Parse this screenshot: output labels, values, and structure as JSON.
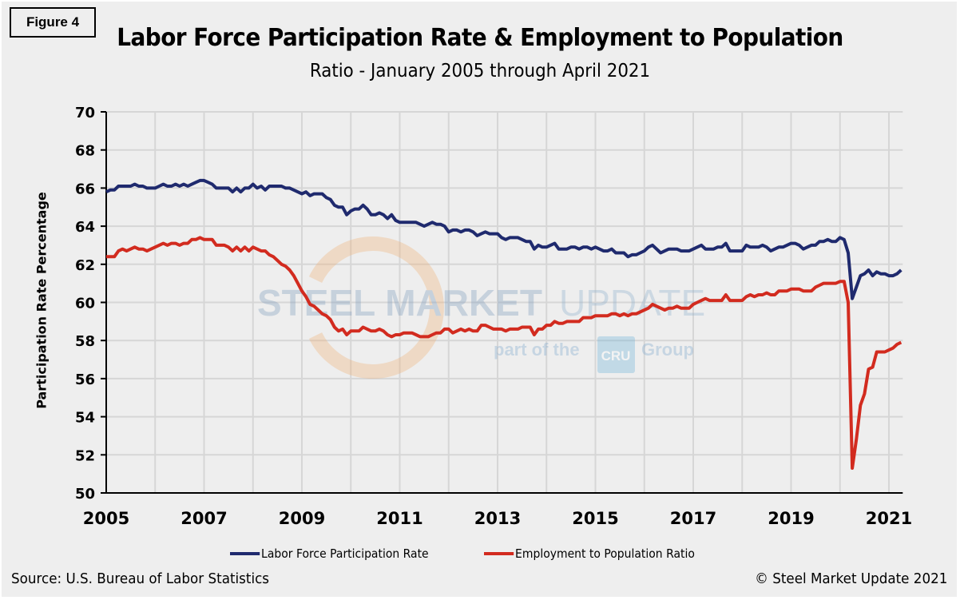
{
  "figure_label": "Figure 4",
  "source": "Source: U.S. Bureau  of Labor Statistics",
  "copyright": "© Steel Market Update 2021",
  "watermark": {
    "main_bold": "STEEL MARKET",
    "main_light": "UPDATE",
    "sub": "part of the",
    "cru": "CRU",
    "group": "Group"
  },
  "chart_data": {
    "type": "line",
    "title": "Labor Force Participation Rate & Employment to Population",
    "subtitle": "Ratio - January 2005 through April 2021",
    "xlabel": "",
    "ylabel": "Participation Rate Percentage",
    "xlim": [
      "2005-01",
      "2021-04"
    ],
    "ylim": [
      50,
      70
    ],
    "x_start": "2005-01",
    "x_frequency": "monthly",
    "x_tick_labels": [
      "2005",
      "2007",
      "2009",
      "2011",
      "2013",
      "2015",
      "2017",
      "2019",
      "2021"
    ],
    "y_tick_labels": [
      "50",
      "52",
      "54",
      "56",
      "58",
      "60",
      "62",
      "64",
      "66",
      "68",
      "70"
    ],
    "grid": true,
    "legend_position": "bottom",
    "series": [
      {
        "name": "Labor Force Participation Rate",
        "color": "#1f2a6e",
        "values": [
          65.8,
          65.9,
          65.9,
          66.1,
          66.1,
          66.1,
          66.1,
          66.2,
          66.1,
          66.1,
          66.0,
          66.0,
          66.0,
          66.1,
          66.2,
          66.1,
          66.1,
          66.2,
          66.1,
          66.2,
          66.1,
          66.2,
          66.3,
          66.4,
          66.4,
          66.3,
          66.2,
          66.0,
          66.0,
          66.0,
          66.0,
          65.8,
          66.0,
          65.8,
          66.0,
          66.0,
          66.2,
          66.0,
          66.1,
          65.9,
          66.1,
          66.1,
          66.1,
          66.1,
          66.0,
          66.0,
          65.9,
          65.8,
          65.7,
          65.8,
          65.6,
          65.7,
          65.7,
          65.7,
          65.5,
          65.4,
          65.1,
          65.0,
          65.0,
          64.6,
          64.8,
          64.9,
          64.9,
          65.1,
          64.9,
          64.6,
          64.6,
          64.7,
          64.6,
          64.4,
          64.6,
          64.3,
          64.2,
          64.2,
          64.2,
          64.2,
          64.2,
          64.1,
          64.0,
          64.1,
          64.2,
          64.1,
          64.1,
          64.0,
          63.7,
          63.8,
          63.8,
          63.7,
          63.8,
          63.8,
          63.7,
          63.5,
          63.6,
          63.7,
          63.6,
          63.6,
          63.6,
          63.4,
          63.3,
          63.4,
          63.4,
          63.4,
          63.3,
          63.2,
          63.2,
          62.8,
          63.0,
          62.9,
          62.9,
          63.0,
          63.1,
          62.8,
          62.8,
          62.8,
          62.9,
          62.9,
          62.8,
          62.9,
          62.9,
          62.8,
          62.9,
          62.8,
          62.7,
          62.7,
          62.8,
          62.6,
          62.6,
          62.6,
          62.4,
          62.5,
          62.5,
          62.6,
          62.7,
          62.9,
          63.0,
          62.8,
          62.6,
          62.7,
          62.8,
          62.8,
          62.8,
          62.7,
          62.7,
          62.7,
          62.8,
          62.9,
          63.0,
          62.8,
          62.8,
          62.8,
          62.9,
          62.9,
          63.1,
          62.7,
          62.7,
          62.7,
          62.7,
          63.0,
          62.9,
          62.9,
          62.9,
          63.0,
          62.9,
          62.7,
          62.8,
          62.9,
          62.9,
          63.0,
          63.1,
          63.1,
          63.0,
          62.8,
          62.9,
          63.0,
          63.0,
          63.2,
          63.2,
          63.3,
          63.2,
          63.2,
          63.4,
          63.3,
          62.6,
          60.2,
          60.8,
          61.4,
          61.5,
          61.7,
          61.4,
          61.6,
          61.5,
          61.5,
          61.4,
          61.4,
          61.5,
          61.7
        ]
      },
      {
        "name": "Employment to Population Ratio",
        "color": "#d22b1f",
        "values": [
          62.4,
          62.4,
          62.4,
          62.7,
          62.8,
          62.7,
          62.8,
          62.9,
          62.8,
          62.8,
          62.7,
          62.8,
          62.9,
          63.0,
          63.1,
          63.0,
          63.1,
          63.1,
          63.0,
          63.1,
          63.1,
          63.3,
          63.3,
          63.4,
          63.3,
          63.3,
          63.3,
          63.0,
          63.0,
          63.0,
          62.9,
          62.7,
          62.9,
          62.7,
          62.9,
          62.7,
          62.9,
          62.8,
          62.7,
          62.7,
          62.5,
          62.4,
          62.2,
          62.0,
          61.9,
          61.7,
          61.4,
          61.0,
          60.6,
          60.3,
          59.9,
          59.8,
          59.6,
          59.4,
          59.3,
          59.1,
          58.7,
          58.5,
          58.6,
          58.3,
          58.5,
          58.5,
          58.5,
          58.7,
          58.6,
          58.5,
          58.5,
          58.6,
          58.5,
          58.3,
          58.2,
          58.3,
          58.3,
          58.4,
          58.4,
          58.4,
          58.3,
          58.2,
          58.2,
          58.2,
          58.3,
          58.4,
          58.4,
          58.6,
          58.6,
          58.4,
          58.5,
          58.6,
          58.5,
          58.6,
          58.5,
          58.5,
          58.8,
          58.8,
          58.7,
          58.6,
          58.6,
          58.6,
          58.5,
          58.6,
          58.6,
          58.6,
          58.7,
          58.7,
          58.7,
          58.3,
          58.6,
          58.6,
          58.8,
          58.8,
          59.0,
          58.9,
          58.9,
          59.0,
          59.0,
          59.0,
          59.0,
          59.2,
          59.2,
          59.2,
          59.3,
          59.3,
          59.3,
          59.3,
          59.4,
          59.4,
          59.3,
          59.4,
          59.3,
          59.4,
          59.4,
          59.5,
          59.6,
          59.7,
          59.9,
          59.8,
          59.7,
          59.6,
          59.7,
          59.7,
          59.8,
          59.7,
          59.7,
          59.7,
          59.9,
          60.0,
          60.1,
          60.2,
          60.1,
          60.1,
          60.1,
          60.1,
          60.4,
          60.1,
          60.1,
          60.1,
          60.1,
          60.3,
          60.4,
          60.3,
          60.4,
          60.4,
          60.5,
          60.4,
          60.4,
          60.6,
          60.6,
          60.6,
          60.7,
          60.7,
          60.7,
          60.6,
          60.6,
          60.6,
          60.8,
          60.9,
          61.0,
          61.0,
          61.0,
          61.0,
          61.1,
          61.1,
          60.0,
          51.3,
          52.8,
          54.6,
          55.2,
          56.5,
          56.6,
          57.4,
          57.4,
          57.4,
          57.5,
          57.6,
          57.8,
          57.9
        ]
      }
    ]
  }
}
